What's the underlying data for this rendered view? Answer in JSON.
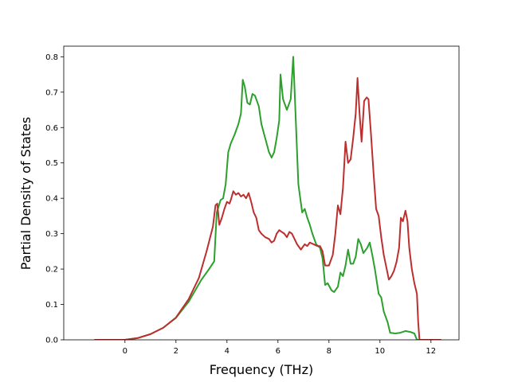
{
  "chart_data": {
    "type": "line",
    "title": "",
    "xlabel": "Frequency (THz)",
    "ylabel": "Partial Density of States",
    "xlim": [
      -2.4,
      13.1
    ],
    "ylim": [
      0.0,
      0.83
    ],
    "xticks": [
      0,
      2,
      4,
      6,
      8,
      10,
      12
    ],
    "yticks": [
      0.0,
      0.1,
      0.2,
      0.3,
      0.4,
      0.5,
      0.6,
      0.7,
      0.8
    ],
    "grid": false,
    "legend": "none",
    "series": [
      {
        "color": "#2ca02c",
        "points": [
          [
            -1.2,
            0.0
          ],
          [
            0.0,
            0.0
          ],
          [
            0.5,
            0.005
          ],
          [
            1.0,
            0.016
          ],
          [
            1.5,
            0.034
          ],
          [
            2.0,
            0.062
          ],
          [
            2.5,
            0.108
          ],
          [
            3.0,
            0.17
          ],
          [
            3.3,
            0.2
          ],
          [
            3.5,
            0.222
          ],
          [
            3.6,
            0.36
          ],
          [
            3.75,
            0.395
          ],
          [
            3.85,
            0.4
          ],
          [
            3.95,
            0.44
          ],
          [
            4.05,
            0.53
          ],
          [
            4.15,
            0.555
          ],
          [
            4.3,
            0.58
          ],
          [
            4.45,
            0.61
          ],
          [
            4.55,
            0.64
          ],
          [
            4.62,
            0.735
          ],
          [
            4.7,
            0.715
          ],
          [
            4.8,
            0.67
          ],
          [
            4.9,
            0.665
          ],
          [
            5.0,
            0.695
          ],
          [
            5.1,
            0.69
          ],
          [
            5.25,
            0.66
          ],
          [
            5.35,
            0.61
          ],
          [
            5.5,
            0.57
          ],
          [
            5.65,
            0.53
          ],
          [
            5.75,
            0.515
          ],
          [
            5.85,
            0.53
          ],
          [
            5.95,
            0.57
          ],
          [
            6.05,
            0.62
          ],
          [
            6.1,
            0.75
          ],
          [
            6.2,
            0.68
          ],
          [
            6.35,
            0.65
          ],
          [
            6.5,
            0.68
          ],
          [
            6.6,
            0.8
          ],
          [
            6.7,
            0.62
          ],
          [
            6.8,
            0.44
          ],
          [
            6.95,
            0.36
          ],
          [
            7.05,
            0.37
          ],
          [
            7.15,
            0.345
          ],
          [
            7.25,
            0.325
          ],
          [
            7.35,
            0.3
          ],
          [
            7.5,
            0.27
          ],
          [
            7.65,
            0.26
          ],
          [
            7.75,
            0.23
          ],
          [
            7.85,
            0.155
          ],
          [
            7.95,
            0.16
          ],
          [
            8.1,
            0.14
          ],
          [
            8.2,
            0.135
          ],
          [
            8.35,
            0.15
          ],
          [
            8.45,
            0.19
          ],
          [
            8.55,
            0.18
          ],
          [
            8.65,
            0.21
          ],
          [
            8.75,
            0.255
          ],
          [
            8.85,
            0.215
          ],
          [
            8.95,
            0.215
          ],
          [
            9.05,
            0.235
          ],
          [
            9.15,
            0.285
          ],
          [
            9.25,
            0.27
          ],
          [
            9.35,
            0.245
          ],
          [
            9.5,
            0.26
          ],
          [
            9.6,
            0.275
          ],
          [
            9.7,
            0.24
          ],
          [
            9.8,
            0.2
          ],
          [
            9.95,
            0.13
          ],
          [
            10.05,
            0.12
          ],
          [
            10.15,
            0.08
          ],
          [
            10.3,
            0.05
          ],
          [
            10.4,
            0.02
          ],
          [
            10.6,
            0.018
          ],
          [
            10.8,
            0.02
          ],
          [
            11.0,
            0.025
          ],
          [
            11.2,
            0.022
          ],
          [
            11.35,
            0.018
          ],
          [
            11.45,
            0.0
          ],
          [
            12.4,
            0.0
          ]
        ]
      },
      {
        "color": "#bd2f2f",
        "points": [
          [
            -1.2,
            0.0
          ],
          [
            0.0,
            0.0
          ],
          [
            0.5,
            0.005
          ],
          [
            1.0,
            0.016
          ],
          [
            1.5,
            0.034
          ],
          [
            2.0,
            0.063
          ],
          [
            2.5,
            0.115
          ],
          [
            2.9,
            0.175
          ],
          [
            3.2,
            0.25
          ],
          [
            3.45,
            0.32
          ],
          [
            3.55,
            0.38
          ],
          [
            3.62,
            0.385
          ],
          [
            3.7,
            0.325
          ],
          [
            3.8,
            0.345
          ],
          [
            3.9,
            0.37
          ],
          [
            4.0,
            0.39
          ],
          [
            4.1,
            0.385
          ],
          [
            4.15,
            0.395
          ],
          [
            4.25,
            0.42
          ],
          [
            4.35,
            0.41
          ],
          [
            4.45,
            0.415
          ],
          [
            4.55,
            0.405
          ],
          [
            4.65,
            0.41
          ],
          [
            4.75,
            0.4
          ],
          [
            4.85,
            0.415
          ],
          [
            4.95,
            0.39
          ],
          [
            5.05,
            0.36
          ],
          [
            5.15,
            0.345
          ],
          [
            5.25,
            0.31
          ],
          [
            5.35,
            0.3
          ],
          [
            5.5,
            0.29
          ],
          [
            5.65,
            0.285
          ],
          [
            5.75,
            0.275
          ],
          [
            5.85,
            0.28
          ],
          [
            5.95,
            0.3
          ],
          [
            6.05,
            0.31
          ],
          [
            6.15,
            0.305
          ],
          [
            6.25,
            0.3
          ],
          [
            6.35,
            0.29
          ],
          [
            6.45,
            0.305
          ],
          [
            6.55,
            0.3
          ],
          [
            6.65,
            0.285
          ],
          [
            6.75,
            0.27
          ],
          [
            6.9,
            0.255
          ],
          [
            7.05,
            0.27
          ],
          [
            7.15,
            0.265
          ],
          [
            7.25,
            0.275
          ],
          [
            7.4,
            0.27
          ],
          [
            7.55,
            0.265
          ],
          [
            7.65,
            0.265
          ],
          [
            7.75,
            0.25
          ],
          [
            7.85,
            0.21
          ],
          [
            8.0,
            0.21
          ],
          [
            8.15,
            0.24
          ],
          [
            8.25,
            0.3
          ],
          [
            8.35,
            0.38
          ],
          [
            8.45,
            0.355
          ],
          [
            8.55,
            0.43
          ],
          [
            8.65,
            0.56
          ],
          [
            8.75,
            0.5
          ],
          [
            8.85,
            0.51
          ],
          [
            8.95,
            0.57
          ],
          [
            9.05,
            0.64
          ],
          [
            9.12,
            0.74
          ],
          [
            9.2,
            0.64
          ],
          [
            9.28,
            0.56
          ],
          [
            9.38,
            0.675
          ],
          [
            9.48,
            0.685
          ],
          [
            9.55,
            0.68
          ],
          [
            9.65,
            0.58
          ],
          [
            9.75,
            0.47
          ],
          [
            9.85,
            0.37
          ],
          [
            9.95,
            0.35
          ],
          [
            10.05,
            0.29
          ],
          [
            10.15,
            0.24
          ],
          [
            10.25,
            0.205
          ],
          [
            10.35,
            0.17
          ],
          [
            10.45,
            0.18
          ],
          [
            10.55,
            0.195
          ],
          [
            10.65,
            0.22
          ],
          [
            10.75,
            0.26
          ],
          [
            10.82,
            0.345
          ],
          [
            10.9,
            0.335
          ],
          [
            11.0,
            0.365
          ],
          [
            11.08,
            0.335
          ],
          [
            11.15,
            0.26
          ],
          [
            11.25,
            0.2
          ],
          [
            11.35,
            0.16
          ],
          [
            11.45,
            0.13
          ],
          [
            11.5,
            0.05
          ],
          [
            11.55,
            0.0
          ],
          [
            12.4,
            0.0
          ]
        ]
      }
    ]
  }
}
